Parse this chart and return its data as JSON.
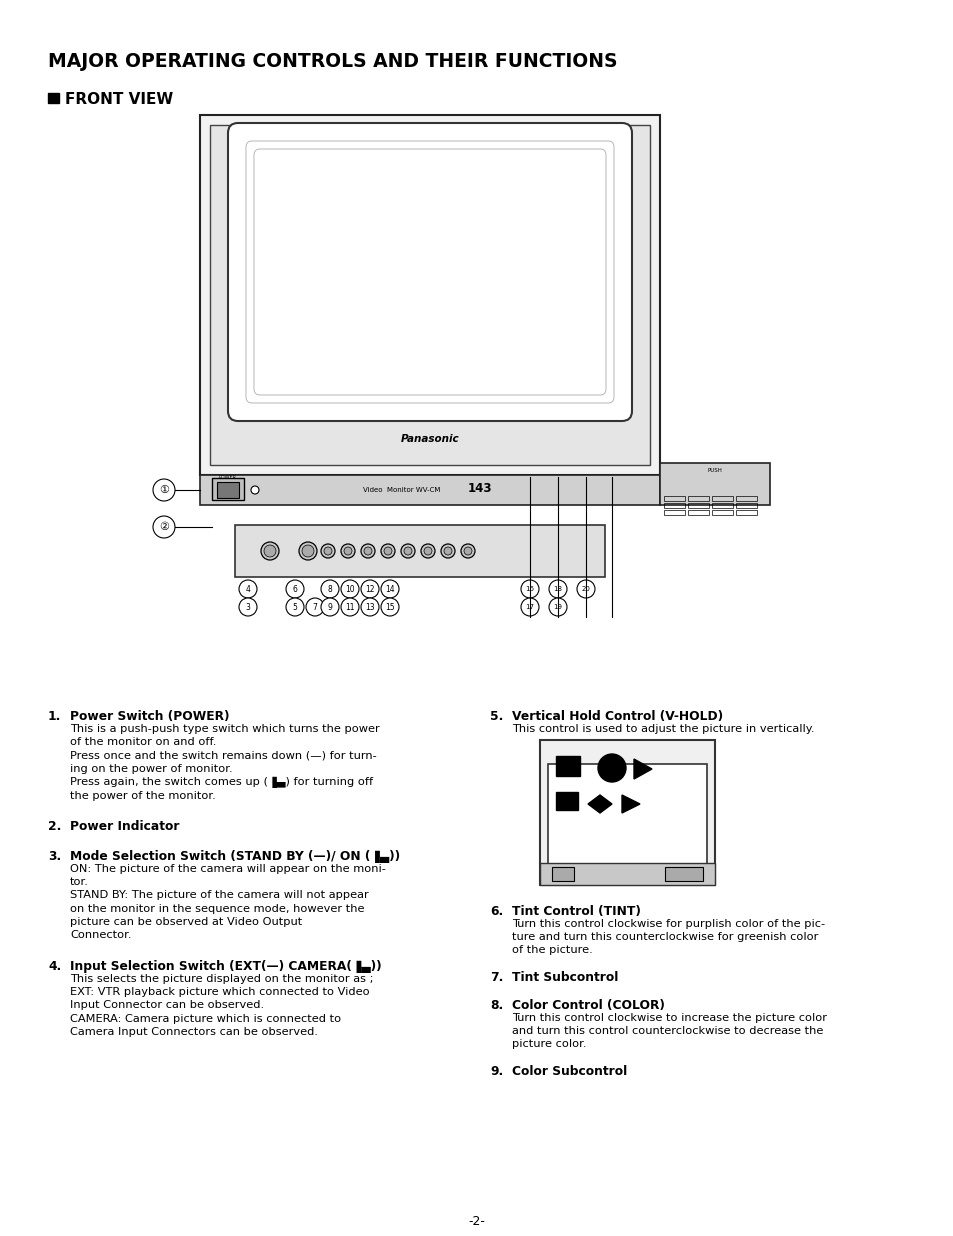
{
  "title": "MAJOR OPERATING CONTROLS AND THEIR FUNCTIONS",
  "subtitle": "FRONT VIEW",
  "bg_color": "#ffffff",
  "text_color": "#000000",
  "page_number": "-2-"
}
